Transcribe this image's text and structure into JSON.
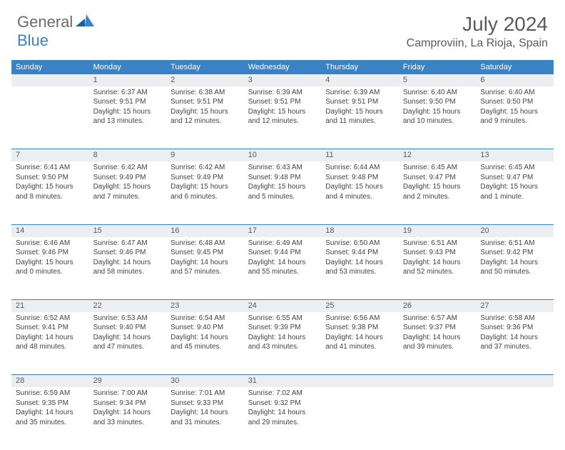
{
  "brand": {
    "general": "General",
    "blue": "Blue"
  },
  "title": "July 2024",
  "location": "Camproviin, La Rioja, Spain",
  "style": {
    "header_bg": "#3b82c4",
    "header_fg": "#ffffff",
    "daynum_bg": "#eceff1",
    "rule_color": "#3b82c4",
    "text_color": "#444",
    "title_color": "#5a5a5a",
    "title_fontsize": 28,
    "location_fontsize": 16,
    "dow_fontsize": 11,
    "daynum_fontsize": 11,
    "body_fontsize": 10,
    "logo_fontsize": 22
  },
  "dow": [
    "Sunday",
    "Monday",
    "Tuesday",
    "Wednesday",
    "Thursday",
    "Friday",
    "Saturday"
  ],
  "weeks": [
    [
      {
        "n": "",
        "sr": "",
        "ss": "",
        "dl": ""
      },
      {
        "n": "1",
        "sr": "Sunrise: 6:37 AM",
        "ss": "Sunset: 9:51 PM",
        "dl": "Daylight: 15 hours and 13 minutes."
      },
      {
        "n": "2",
        "sr": "Sunrise: 6:38 AM",
        "ss": "Sunset: 9:51 PM",
        "dl": "Daylight: 15 hours and 12 minutes."
      },
      {
        "n": "3",
        "sr": "Sunrise: 6:39 AM",
        "ss": "Sunset: 9:51 PM",
        "dl": "Daylight: 15 hours and 12 minutes."
      },
      {
        "n": "4",
        "sr": "Sunrise: 6:39 AM",
        "ss": "Sunset: 9:51 PM",
        "dl": "Daylight: 15 hours and 11 minutes."
      },
      {
        "n": "5",
        "sr": "Sunrise: 6:40 AM",
        "ss": "Sunset: 9:50 PM",
        "dl": "Daylight: 15 hours and 10 minutes."
      },
      {
        "n": "6",
        "sr": "Sunrise: 6:40 AM",
        "ss": "Sunset: 9:50 PM",
        "dl": "Daylight: 15 hours and 9 minutes."
      }
    ],
    [
      {
        "n": "7",
        "sr": "Sunrise: 6:41 AM",
        "ss": "Sunset: 9:50 PM",
        "dl": "Daylight: 15 hours and 8 minutes."
      },
      {
        "n": "8",
        "sr": "Sunrise: 6:42 AM",
        "ss": "Sunset: 9:49 PM",
        "dl": "Daylight: 15 hours and 7 minutes."
      },
      {
        "n": "9",
        "sr": "Sunrise: 6:42 AM",
        "ss": "Sunset: 9:49 PM",
        "dl": "Daylight: 15 hours and 6 minutes."
      },
      {
        "n": "10",
        "sr": "Sunrise: 6:43 AM",
        "ss": "Sunset: 9:48 PM",
        "dl": "Daylight: 15 hours and 5 minutes."
      },
      {
        "n": "11",
        "sr": "Sunrise: 6:44 AM",
        "ss": "Sunset: 9:48 PM",
        "dl": "Daylight: 15 hours and 4 minutes."
      },
      {
        "n": "12",
        "sr": "Sunrise: 6:45 AM",
        "ss": "Sunset: 9:47 PM",
        "dl": "Daylight: 15 hours and 2 minutes."
      },
      {
        "n": "13",
        "sr": "Sunrise: 6:45 AM",
        "ss": "Sunset: 9:47 PM",
        "dl": "Daylight: 15 hours and 1 minute."
      }
    ],
    [
      {
        "n": "14",
        "sr": "Sunrise: 6:46 AM",
        "ss": "Sunset: 9:46 PM",
        "dl": "Daylight: 15 hours and 0 minutes."
      },
      {
        "n": "15",
        "sr": "Sunrise: 6:47 AM",
        "ss": "Sunset: 9:46 PM",
        "dl": "Daylight: 14 hours and 58 minutes."
      },
      {
        "n": "16",
        "sr": "Sunrise: 6:48 AM",
        "ss": "Sunset: 9:45 PM",
        "dl": "Daylight: 14 hours and 57 minutes."
      },
      {
        "n": "17",
        "sr": "Sunrise: 6:49 AM",
        "ss": "Sunset: 9:44 PM",
        "dl": "Daylight: 14 hours and 55 minutes."
      },
      {
        "n": "18",
        "sr": "Sunrise: 6:50 AM",
        "ss": "Sunset: 9:44 PM",
        "dl": "Daylight: 14 hours and 53 minutes."
      },
      {
        "n": "19",
        "sr": "Sunrise: 6:51 AM",
        "ss": "Sunset: 9:43 PM",
        "dl": "Daylight: 14 hours and 52 minutes."
      },
      {
        "n": "20",
        "sr": "Sunrise: 6:51 AM",
        "ss": "Sunset: 9:42 PM",
        "dl": "Daylight: 14 hours and 50 minutes."
      }
    ],
    [
      {
        "n": "21",
        "sr": "Sunrise: 6:52 AM",
        "ss": "Sunset: 9:41 PM",
        "dl": "Daylight: 14 hours and 48 minutes."
      },
      {
        "n": "22",
        "sr": "Sunrise: 6:53 AM",
        "ss": "Sunset: 9:40 PM",
        "dl": "Daylight: 14 hours and 47 minutes."
      },
      {
        "n": "23",
        "sr": "Sunrise: 6:54 AM",
        "ss": "Sunset: 9:40 PM",
        "dl": "Daylight: 14 hours and 45 minutes."
      },
      {
        "n": "24",
        "sr": "Sunrise: 6:55 AM",
        "ss": "Sunset: 9:39 PM",
        "dl": "Daylight: 14 hours and 43 minutes."
      },
      {
        "n": "25",
        "sr": "Sunrise: 6:56 AM",
        "ss": "Sunset: 9:38 PM",
        "dl": "Daylight: 14 hours and 41 minutes."
      },
      {
        "n": "26",
        "sr": "Sunrise: 6:57 AM",
        "ss": "Sunset: 9:37 PM",
        "dl": "Daylight: 14 hours and 39 minutes."
      },
      {
        "n": "27",
        "sr": "Sunrise: 6:58 AM",
        "ss": "Sunset: 9:36 PM",
        "dl": "Daylight: 14 hours and 37 minutes."
      }
    ],
    [
      {
        "n": "28",
        "sr": "Sunrise: 6:59 AM",
        "ss": "Sunset: 9:35 PM",
        "dl": "Daylight: 14 hours and 35 minutes."
      },
      {
        "n": "29",
        "sr": "Sunrise: 7:00 AM",
        "ss": "Sunset: 9:34 PM",
        "dl": "Daylight: 14 hours and 33 minutes."
      },
      {
        "n": "30",
        "sr": "Sunrise: 7:01 AM",
        "ss": "Sunset: 9:33 PM",
        "dl": "Daylight: 14 hours and 31 minutes."
      },
      {
        "n": "31",
        "sr": "Sunrise: 7:02 AM",
        "ss": "Sunset: 9:32 PM",
        "dl": "Daylight: 14 hours and 29 minutes."
      },
      {
        "n": "",
        "sr": "",
        "ss": "",
        "dl": ""
      },
      {
        "n": "",
        "sr": "",
        "ss": "",
        "dl": ""
      },
      {
        "n": "",
        "sr": "",
        "ss": "",
        "dl": ""
      }
    ]
  ]
}
